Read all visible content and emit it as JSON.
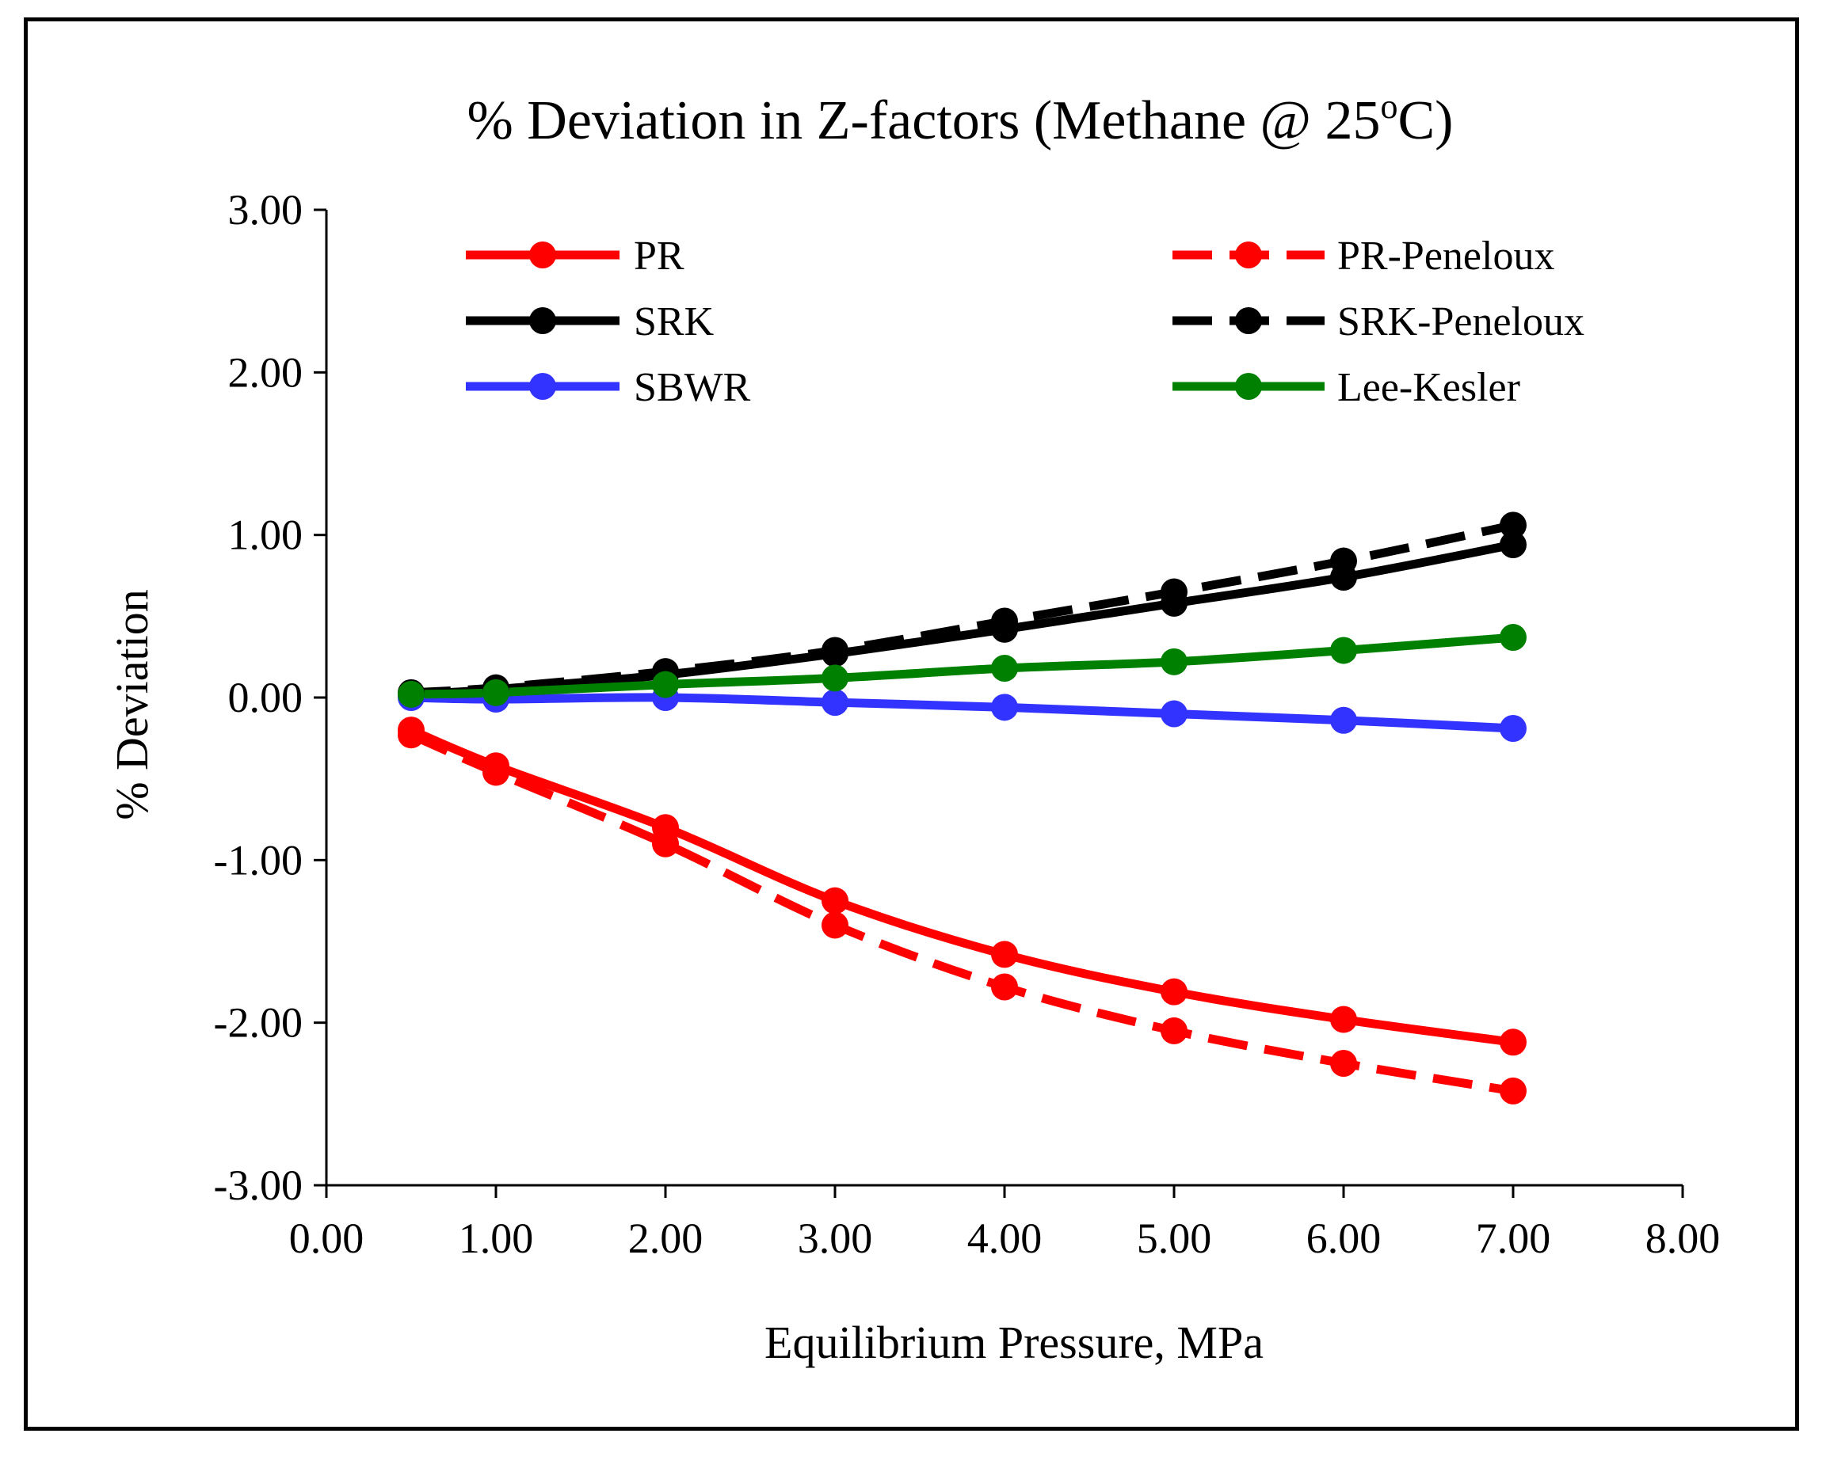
{
  "chart_data": {
    "type": "line",
    "title": "% Deviation in Z-factors (Methane @ 25",
    "title_superscript": "o",
    "title_suffix": "C)",
    "xlabel": "Equilibrium Pressure, MPa",
    "ylabel": "% Deviation",
    "xlim": [
      0,
      8
    ],
    "ylim": [
      -3,
      3
    ],
    "xticks": [
      "0.00",
      "1.00",
      "2.00",
      "3.00",
      "4.00",
      "5.00",
      "6.00",
      "7.00",
      "8.00"
    ],
    "yticks": [
      "3.00",
      "2.00",
      "1.00",
      "0.00",
      "-1.00",
      "-2.00",
      "-3.00"
    ],
    "x": [
      0.5,
      1,
      2,
      3,
      4,
      5,
      6,
      7
    ],
    "series": [
      {
        "name": "PR",
        "color": "#ff0000",
        "dash": false,
        "values": [
          -0.2,
          -0.42,
          -0.8,
          -1.25,
          -1.58,
          -1.81,
          -1.98,
          -2.12
        ]
      },
      {
        "name": "PR-Peneloux",
        "color": "#ff0000",
        "dash": true,
        "values": [
          -0.23,
          -0.46,
          -0.9,
          -1.4,
          -1.78,
          -2.05,
          -2.25,
          -2.42
        ]
      },
      {
        "name": "SRK",
        "color": "#000000",
        "dash": false,
        "values": [
          0.02,
          0.05,
          0.14,
          0.27,
          0.42,
          0.58,
          0.74,
          0.94
        ]
      },
      {
        "name": "SRK-Peneloux",
        "color": "#000000",
        "dash": true,
        "values": [
          0.03,
          0.06,
          0.16,
          0.29,
          0.47,
          0.65,
          0.84,
          1.06
        ]
      },
      {
        "name": "SBWR",
        "color": "#3333ff",
        "dash": false,
        "values": [
          0.0,
          -0.01,
          0.0,
          -0.03,
          -0.06,
          -0.1,
          -0.14,
          -0.19
        ]
      },
      {
        "name": "Lee-Kesler",
        "color": "#008000",
        "dash": false,
        "values": [
          0.02,
          0.03,
          0.08,
          0.12,
          0.18,
          0.22,
          0.29,
          0.37
        ]
      }
    ],
    "legend_position": "top"
  }
}
